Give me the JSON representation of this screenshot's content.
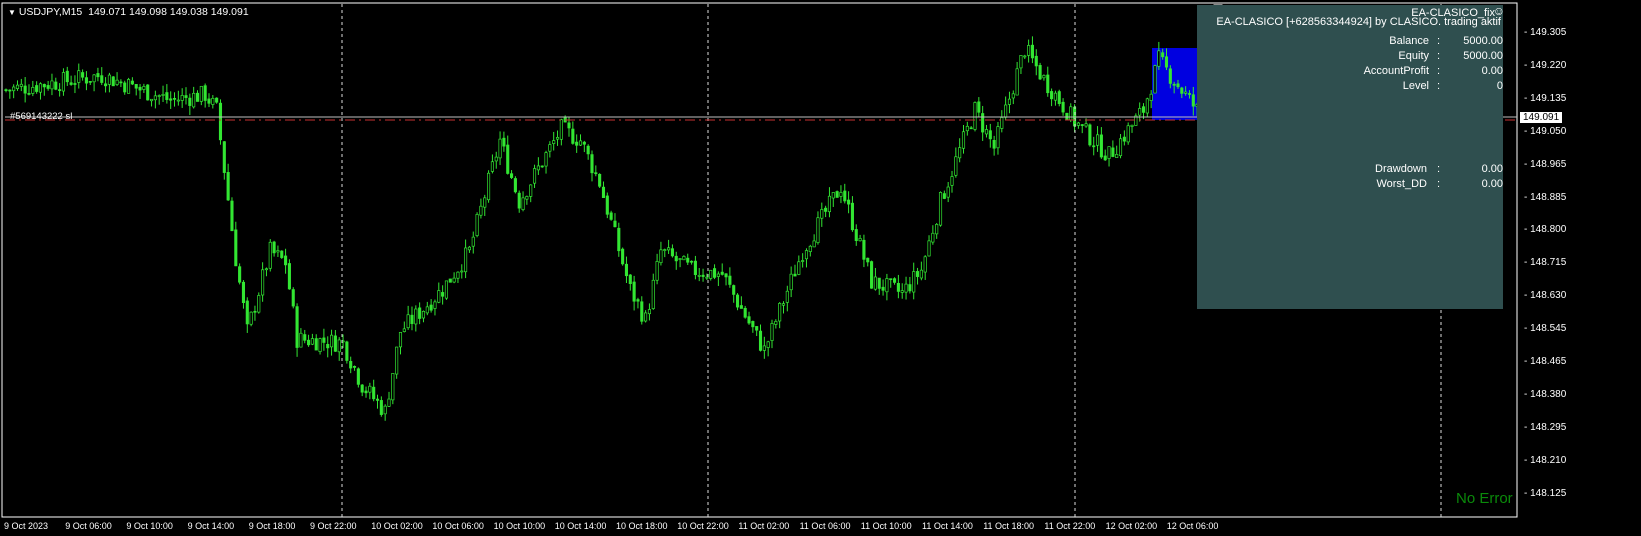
{
  "header": {
    "symbol_timeframe": "USDJPY,M15",
    "ohlc": "149.071 149.098 149.038 149.091",
    "menu_icon": "triangle-down-icon"
  },
  "order_line_label": "#569143222 sl",
  "current_price": "149.091",
  "ea": {
    "name": "EA-CLASICO_fix",
    "title": "EA-CLASICO [+628563344924] by CLASICO. trading aktif",
    "smiley_icon": "smiley-icon",
    "rows": [
      {
        "label": "Balance",
        "value": "5000.00"
      },
      {
        "label": "Equity",
        "value": "5000.00"
      },
      {
        "label": "AccountProfit",
        "value": "0.00"
      },
      {
        "label": "Level",
        "value": "0"
      }
    ],
    "rows2": [
      {
        "label": "Drawdown",
        "value": "0.00"
      },
      {
        "label": "Worst_DD",
        "value": "0.00"
      }
    ],
    "colon": ":",
    "panel_color": "#2f4f4f"
  },
  "status": "No Error",
  "price_axis": [
    "149.305",
    "149.220",
    "149.135",
    "149.050",
    "148.965",
    "148.885",
    "148.800",
    "148.715",
    "148.630",
    "148.545",
    "148.465",
    "148.380",
    "148.295",
    "148.210",
    "148.125"
  ],
  "time_axis": [
    "9 Oct 2023",
    "9 Oct 06:00",
    "9 Oct 10:00",
    "9 Oct 14:00",
    "9 Oct 18:00",
    "9 Oct 22:00",
    "10 Oct 02:00",
    "10 Oct 06:00",
    "10 Oct 10:00",
    "10 Oct 14:00",
    "10 Oct 18:00",
    "10 Oct 22:00",
    "11 Oct 02:00",
    "11 Oct 06:00",
    "11 Oct 10:00",
    "11 Oct 14:00",
    "11 Oct 18:00",
    "11 Oct 22:00",
    "12 Oct 02:00",
    "12 Oct 06:00"
  ],
  "colors": {
    "candle": "#32e632",
    "bid_line": "#c0c0c0",
    "sl_line": "#c83232",
    "zone": "#0000e0",
    "status": "#0a8a0a"
  },
  "price_path": [
    [
      0,
      149.162
    ],
    [
      25,
      149.2
    ],
    [
      43,
      149.135
    ],
    [
      52,
      149.15
    ],
    [
      55,
      149.11
    ],
    [
      60,
      148.72
    ],
    [
      63,
      148.53
    ],
    [
      69,
      148.74
    ],
    [
      73,
      148.71
    ],
    [
      76,
      148.51
    ],
    [
      88,
      148.5
    ],
    [
      93,
      148.39
    ],
    [
      99,
      148.32
    ],
    [
      103,
      148.53
    ],
    [
      114,
      148.64
    ],
    [
      121,
      148.74
    ],
    [
      129,
      149.03
    ],
    [
      134,
      148.87
    ],
    [
      145,
      149.06
    ],
    [
      150,
      149.03
    ],
    [
      155,
      148.92
    ],
    [
      163,
      148.64
    ],
    [
      167,
      148.56
    ],
    [
      171,
      148.74
    ],
    [
      179,
      148.69
    ],
    [
      187,
      148.68
    ],
    [
      198,
      148.48
    ],
    [
      208,
      148.74
    ],
    [
      218,
      148.91
    ],
    [
      226,
      148.66
    ],
    [
      234,
      148.63
    ],
    [
      239,
      148.69
    ],
    [
      244,
      148.87
    ],
    [
      253,
      149.11
    ],
    [
      258,
      149.01
    ],
    [
      266,
      149.27
    ],
    [
      271,
      149.19
    ],
    [
      279,
      149.08
    ],
    [
      288,
      148.99
    ],
    [
      297,
      149.11
    ],
    [
      301,
      149.24
    ],
    [
      309,
      149.135
    ],
    [
      314,
      149.07
    ]
  ]
}
